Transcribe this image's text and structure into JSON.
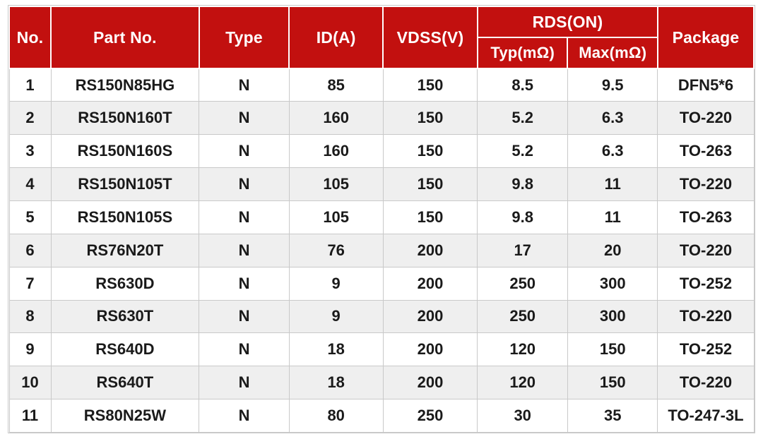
{
  "colors": {
    "header_bg": "#c2100f",
    "header_text": "#ffffff",
    "row_alt_bg": "#efefef",
    "row_bg": "#ffffff",
    "border": "#c9c9c9",
    "text": "#1a1a1a",
    "page_bg": "#ffffff"
  },
  "table": {
    "columns": {
      "no": "No.",
      "part_no": "Part No.",
      "type": "Type",
      "id_a": "ID(A)",
      "vdss_v": "VDSS(V)",
      "rds_on": "RDS(ON)",
      "typ": "Typ(mΩ)",
      "max": "Max(mΩ)",
      "package": "Package"
    },
    "rows": [
      {
        "no": "1",
        "part_no": "RS150N85HG",
        "type": "N",
        "id_a": "85",
        "vdss_v": "150",
        "typ": "8.5",
        "max": "9.5",
        "package": "DFN5*6"
      },
      {
        "no": "2",
        "part_no": "RS150N160T",
        "type": "N",
        "id_a": "160",
        "vdss_v": "150",
        "typ": "5.2",
        "max": "6.3",
        "package": "TO-220"
      },
      {
        "no": "3",
        "part_no": "RS150N160S",
        "type": "N",
        "id_a": "160",
        "vdss_v": "150",
        "typ": "5.2",
        "max": "6.3",
        "package": "TO-263"
      },
      {
        "no": "4",
        "part_no": "RS150N105T",
        "type": "N",
        "id_a": "105",
        "vdss_v": "150",
        "typ": "9.8",
        "max": "11",
        "package": "TO-220"
      },
      {
        "no": "5",
        "part_no": "RS150N105S",
        "type": "N",
        "id_a": "105",
        "vdss_v": "150",
        "typ": "9.8",
        "max": "11",
        "package": "TO-263"
      },
      {
        "no": "6",
        "part_no": "RS76N20T",
        "type": "N",
        "id_a": "76",
        "vdss_v": "200",
        "typ": "17",
        "max": "20",
        "package": "TO-220"
      },
      {
        "no": "7",
        "part_no": "RS630D",
        "type": "N",
        "id_a": "9",
        "vdss_v": "200",
        "typ": "250",
        "max": "300",
        "package": "TO-252"
      },
      {
        "no": "8",
        "part_no": "RS630T",
        "type": "N",
        "id_a": "9",
        "vdss_v": "200",
        "typ": "250",
        "max": "300",
        "package": "TO-220"
      },
      {
        "no": "9",
        "part_no": "RS640D",
        "type": "N",
        "id_a": "18",
        "vdss_v": "200",
        "typ": "120",
        "max": "150",
        "package": "TO-252"
      },
      {
        "no": "10",
        "part_no": "RS640T",
        "type": "N",
        "id_a": "18",
        "vdss_v": "200",
        "typ": "120",
        "max": "150",
        "package": "TO-220"
      },
      {
        "no": "11",
        "part_no": "RS80N25W",
        "type": "N",
        "id_a": "80",
        "vdss_v": "250",
        "typ": "30",
        "max": "35",
        "package": "TO-247-3L"
      }
    ]
  }
}
